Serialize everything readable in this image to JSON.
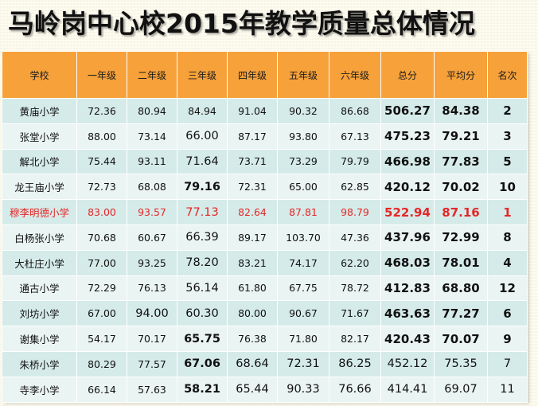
{
  "title": "马岭岗中心校2015年教学质量总体情况",
  "colors": {
    "header_bg": "#f6a13a",
    "row_odd": "#d5ebe9",
    "row_even": "#eaf4f3",
    "highlight_text": "#e52727"
  },
  "table": {
    "headers": [
      "学校",
      "一年级",
      "二年级",
      "三年级",
      "四年级",
      "五年级",
      "六年级",
      "总分",
      "平均分",
      "名次"
    ],
    "rows": [
      [
        "黄庙小学",
        "72.36",
        "80.94",
        "84.94",
        "91.04",
        "90.32",
        "86.68",
        "506.27",
        "84.38",
        "2"
      ],
      [
        "张堂小学",
        "88.00",
        "73.14",
        "66.00",
        "87.17",
        "93.80",
        "67.13",
        "475.23",
        "79.21",
        "3"
      ],
      [
        "解北小学",
        "75.44",
        "93.11",
        "71.64",
        "73.71",
        "73.29",
        "79.79",
        "466.98",
        "77.83",
        "5"
      ],
      [
        "龙王庙小学",
        "72.73",
        "68.08",
        "79.16",
        "72.31",
        "65.00",
        "62.85",
        "420.12",
        "70.02",
        "10"
      ],
      [
        "穆李明德小学",
        "83.00",
        "93.57",
        "77.13",
        "82.64",
        "87.81",
        "98.79",
        "522.94",
        "87.16",
        "1"
      ],
      [
        "白杨张小学",
        "70.68",
        "60.67",
        "66.39",
        "89.17",
        "103.70",
        "47.36",
        "437.96",
        "72.99",
        "8"
      ],
      [
        "大杜庄小学",
        "77.00",
        "93.25",
        "78.20",
        "83.21",
        "74.17",
        "62.20",
        "468.03",
        "78.01",
        "4"
      ],
      [
        "通古小学",
        "72.29",
        "76.13",
        "56.14",
        "61.80",
        "67.75",
        "78.72",
        "412.83",
        "68.80",
        "12"
      ],
      [
        "刘坊小学",
        "67.00",
        "94.00",
        "60.30",
        "80.00",
        "90.67",
        "71.67",
        "463.63",
        "77.27",
        "6"
      ],
      [
        "谢集小学",
        "54.17",
        "70.17",
        "65.75",
        "76.38",
        "71.80",
        "82.17",
        "420.43",
        "70.07",
        "9"
      ],
      [
        "朱桥小学",
        "80.29",
        "77.57",
        "67.06",
        "68.64",
        "72.31",
        "86.25",
        "452.12",
        "75.35",
        "7"
      ],
      [
        "寺李小学",
        "66.14",
        "57.63",
        "58.21",
        "65.44",
        "90.33",
        "76.66",
        "414.41",
        "69.07",
        "11"
      ]
    ]
  }
}
